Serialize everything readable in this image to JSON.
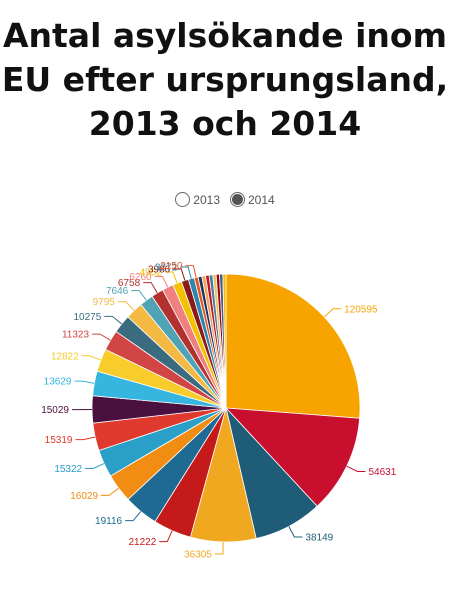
{
  "page": {
    "title_lines": [
      "Antal asylsökande inom",
      "EU efter ursprungsland,",
      "2013 och 2014"
    ]
  },
  "toggles": [
    {
      "label": "2013",
      "selected": false
    },
    {
      "label": "2014",
      "selected": true
    }
  ],
  "chart_data": {
    "type": "pie",
    "title": "Antal asylsökande inom EU efter ursprungsland, 2013 och 2014",
    "selected_year": "2014",
    "values": [
      120595,
      54631,
      38149,
      36305,
      21222,
      19116,
      16029,
      15322,
      15319,
      15029,
      13629,
      12822,
      11323,
      10275,
      9795,
      7646,
      6758,
      6260,
      4952,
      3986,
      3272,
      2150,
      2100,
      2050,
      2000,
      1950,
      1900,
      1850,
      1800,
      1750
    ],
    "labels": [
      "120595",
      "54631",
      "38149",
      "36305",
      "21222",
      "19116",
      "16029",
      "15322",
      "15319",
      "15029",
      "13629",
      "12822",
      "11323",
      "10275",
      "9795",
      "7646",
      "6758",
      "6260",
      "4952",
      "3986",
      "3272",
      "2150",
      "",
      "",
      "",
      "",
      "",
      "",
      "",
      ""
    ],
    "colors": [
      "#f7a400",
      "#c8102e",
      "#1f5c77",
      "#efa81f",
      "#c41a1a",
      "#1e6a93",
      "#f18d12",
      "#2aa0c8",
      "#e03a2e",
      "#4a1040",
      "#36b5de",
      "#f7cc2b",
      "#d14545",
      "#3a6b7e",
      "#f4b942",
      "#4fa3b5",
      "#b3312e",
      "#f08080",
      "#f2c200",
      "#8b1a1a",
      "#2e86ab",
      "#e4572e",
      "#1d3557",
      "#f4a261",
      "#c1121f",
      "#457b9d",
      "#e9c46a",
      "#9d0208",
      "#3d5a80",
      "#ffb703"
    ]
  }
}
